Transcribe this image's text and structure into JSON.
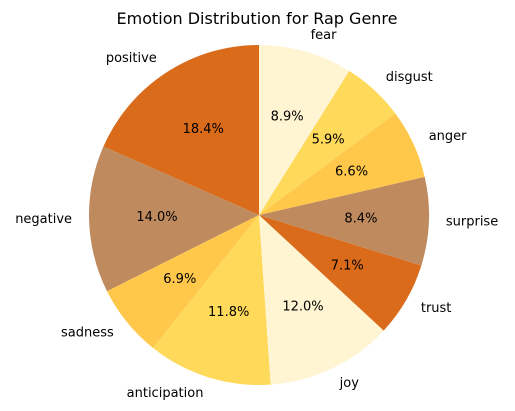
{
  "chart_data": {
    "type": "pie",
    "title": "Emotion Distribution for Rap Genre",
    "start_angle_deg": 90,
    "direction": "counterclockwise",
    "slices": [
      {
        "label": "positive",
        "percent": 18.4,
        "percent_label": "18.4%",
        "color": "#da6b1a"
      },
      {
        "label": "negative",
        "percent": 14.0,
        "percent_label": "14.0%",
        "color": "#bf8a5e"
      },
      {
        "label": "sadness",
        "percent": 6.9,
        "percent_label": "6.9%",
        "color": "#ffc84b"
      },
      {
        "label": "anticipation",
        "percent": 11.8,
        "percent_label": "11.8%",
        "color": "#ffd95a"
      },
      {
        "label": "joy",
        "percent": 12.0,
        "percent_label": "12.0%",
        "color": "#fff5d2"
      },
      {
        "label": "trust",
        "percent": 7.1,
        "percent_label": "7.1%",
        "color": "#da6b1a"
      },
      {
        "label": "surprise",
        "percent": 8.4,
        "percent_label": "8.4%",
        "color": "#bf8a5e"
      },
      {
        "label": "anger",
        "percent": 6.6,
        "percent_label": "6.6%",
        "color": "#ffc84b"
      },
      {
        "label": "disgust",
        "percent": 5.9,
        "percent_label": "5.9%",
        "color": "#ffd95a"
      },
      {
        "label": "fear",
        "percent": 8.9,
        "percent_label": "8.9%",
        "color": "#fff5d2"
      }
    ]
  }
}
